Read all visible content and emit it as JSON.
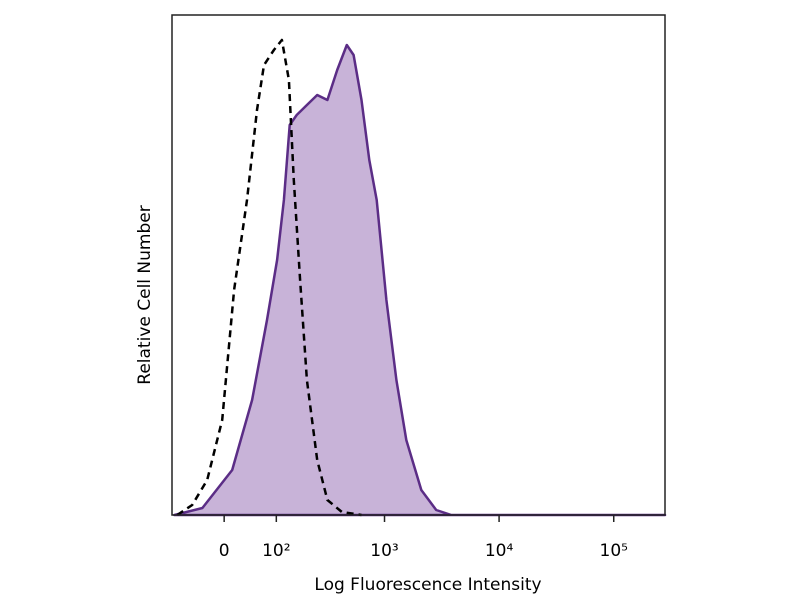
{
  "chart_data": {
    "type": "histogram-overlay",
    "x_label": "Log Fluorescence Intensity",
    "y_label": "Relative Cell Number",
    "xscale": "biexponential",
    "xlim": [
      -100,
      280000
    ],
    "ylim": [
      0,
      100
    ],
    "xticks": [
      0,
      {
        "value": 100,
        "label": "10²"
      },
      {
        "value": 1000,
        "label": "10³"
      },
      {
        "value": 10000,
        "label": "10⁴"
      },
      {
        "value": 100000,
        "label": "10⁵"
      }
    ],
    "series": [
      {
        "color": "#5b2d86",
        "fill": "#c8b3d8",
        "linestyle": "solid",
        "x": [
          -94,
          -36,
          12.9,
          47.2,
          77.7,
          101.9,
          120.6,
          138.5,
          162.4,
          203,
          253,
          313,
          383,
          466,
          535,
          628,
          736,
          855,
          1039,
          1270,
          1551,
          2095,
          2830,
          3827,
          280000
        ],
        "values": [
          0,
          1.4,
          9,
          23,
          39,
          51,
          63,
          78,
          80,
          82,
          84,
          83,
          89,
          94,
          92,
          83,
          71,
          63,
          43,
          27,
          15,
          5,
          1,
          0,
          0
        ]
      },
      {
        "color": "#000000",
        "linestyle": "dashed",
        "x": [
          -87,
          -55,
          -27.7,
          -3.2,
          16.1,
          38,
          56.7,
          71,
          94,
          115,
          136,
          152,
          175,
          203,
          253,
          313,
          422,
          628
        ],
        "values": [
          0,
          2,
          7,
          19,
          45,
          63,
          81,
          90,
          93,
          95,
          87,
          67,
          47,
          27,
          11,
          3,
          0.6,
          0
        ]
      }
    ]
  }
}
